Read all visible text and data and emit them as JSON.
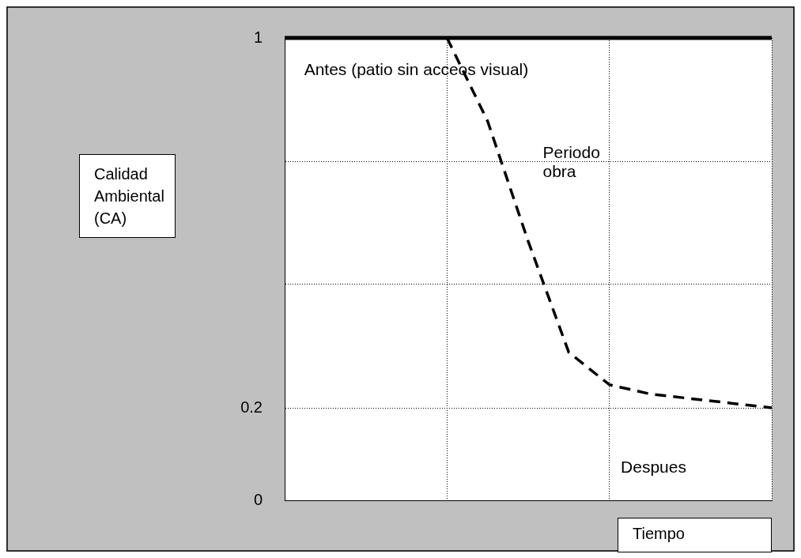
{
  "chart_data": {
    "type": "line",
    "xlabel": "Tiempo",
    "ylabel": "Calidad Ambiental (CA)",
    "categories": [
      null,
      null,
      null,
      null,
      null,
      null,
      null,
      null,
      null,
      null,
      null,
      null,
      null
    ],
    "ylim": [
      0,
      1
    ],
    "yticks": [
      0,
      0.2,
      {
        "value": 0.467,
        "label": null
      },
      {
        "value": 0.733,
        "label": null
      },
      1
    ],
    "grid": true,
    "legend": false,
    "marker": "none",
    "series": [
      {
        "color": "#000000",
        "line_style": "solid",
        "values": [
          1,
          1,
          1,
          1,
          1,
          1,
          1,
          1,
          1,
          1,
          1,
          1,
          1
        ]
      },
      {
        "color": "#000000",
        "line_style": "dashed",
        "values": [
          null,
          null,
          null,
          null,
          1.0,
          0.82,
          0.56,
          0.32,
          0.25,
          0.23,
          0.22,
          0.21,
          0.2
        ]
      }
    ],
    "annotations": [
      "Antes (patio sin acceos visual)",
      "Periodo obra",
      "Despues"
    ]
  }
}
